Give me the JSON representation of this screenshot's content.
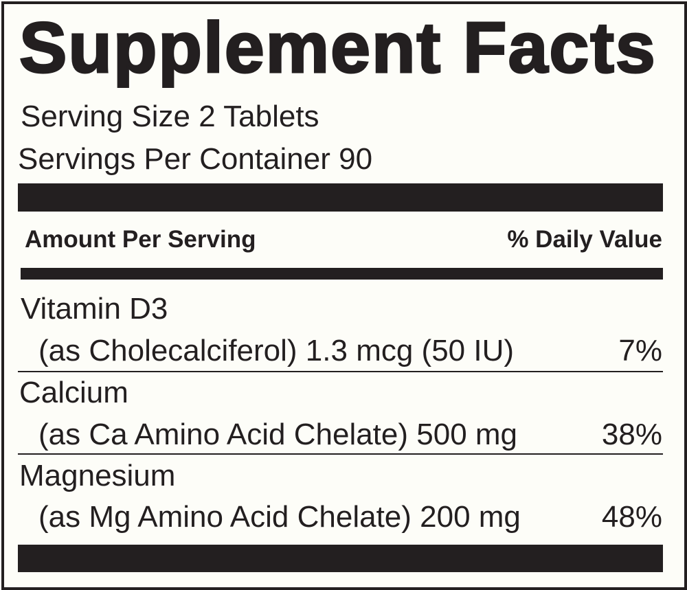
{
  "title": "Supplement Facts",
  "serving_size": "Serving Size 2 Tablets",
  "servings_per_container": "Servings Per Container 90",
  "header": {
    "amount": "Amount Per Serving",
    "dv": "% Daily Value"
  },
  "nutrients": [
    {
      "name": "Vitamin D3",
      "detail": "(as Cholecalciferol) 1.3 mcg (50 IU)",
      "dv": "7%"
    },
    {
      "name": "Calcium",
      "detail": "(as Ca Amino Acid Chelate) 500 mg",
      "dv": "38%"
    },
    {
      "name": "Magnesium",
      "detail": "(as Mg Amino Acid Chelate) 200 mg",
      "dv": "48%"
    }
  ],
  "colors": {
    "ink": "#231f20",
    "background": "#fdfdf8"
  }
}
